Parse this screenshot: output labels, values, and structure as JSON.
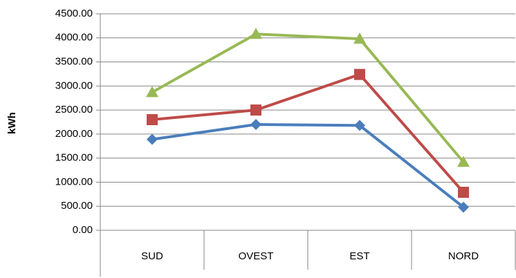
{
  "chart_data": {
    "type": "line",
    "y_label": "kWh",
    "categories": [
      "SUD",
      "OVEST",
      "EST",
      "NORD"
    ],
    "series": [
      {
        "color": "#4a7ebb",
        "marker": "diamond",
        "values": [
          1890,
          2200,
          2180,
          480
        ]
      },
      {
        "color": "#be4b48",
        "marker": "square",
        "values": [
          2300,
          2500,
          3240,
          790
        ]
      },
      {
        "color": "#98b954",
        "marker": "triangle",
        "values": [
          2870,
          4080,
          3980,
          1420
        ]
      }
    ],
    "ylim": [
      0,
      4500
    ],
    "yticks": [
      {
        "value": 0,
        "label": "0.00"
      },
      {
        "value": 500,
        "label": "500.00"
      },
      {
        "value": 1000,
        "label": "1000.00"
      },
      {
        "value": 1500,
        "label": "1500.00"
      },
      {
        "value": 2000,
        "label": "2000.00"
      },
      {
        "value": 2500,
        "label": "2500.00"
      },
      {
        "value": 3000,
        "label": "3000.00"
      },
      {
        "value": 3500,
        "label": "3500.00"
      },
      {
        "value": 4000,
        "label": "4000.00"
      },
      {
        "value": 4500,
        "label": "4500.00"
      }
    ],
    "grid": true
  }
}
